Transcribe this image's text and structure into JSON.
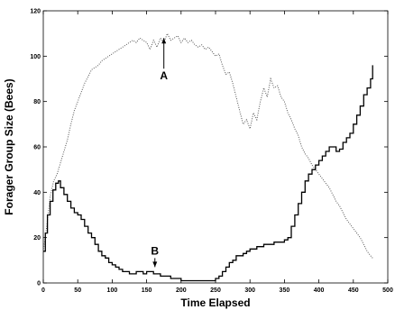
{
  "chart_data": {
    "type": "line",
    "xlabel": "Time Elapsed",
    "ylabel": "Forager Group Size (Bees)",
    "xlim": [
      0,
      500
    ],
    "ylim": [
      0,
      120
    ],
    "xticks": [
      "0",
      "50",
      "100",
      "150",
      "200",
      "250",
      "300",
      "350",
      "400",
      "450",
      "500"
    ],
    "yticks": [
      "0",
      "20",
      "40",
      "60",
      "80",
      "100",
      "120"
    ],
    "grid": false,
    "annotations": [
      {
        "label": "A",
        "x": 175,
        "y": 108
      },
      {
        "label": "B",
        "x": 162,
        "y": 7
      }
    ],
    "series": [
      {
        "style": "dotted",
        "color": "#555555",
        "points": [
          [
            0,
            14
          ],
          [
            5,
            25
          ],
          [
            10,
            38
          ],
          [
            15,
            45
          ],
          [
            20,
            48
          ],
          [
            25,
            53
          ],
          [
            30,
            58
          ],
          [
            35,
            63
          ],
          [
            40,
            70
          ],
          [
            45,
            76
          ],
          [
            50,
            80
          ],
          [
            55,
            84
          ],
          [
            60,
            88
          ],
          [
            65,
            91
          ],
          [
            70,
            94
          ],
          [
            75,
            95
          ],
          [
            80,
            96
          ],
          [
            85,
            98
          ],
          [
            90,
            99
          ],
          [
            95,
            100
          ],
          [
            100,
            101
          ],
          [
            105,
            102
          ],
          [
            110,
            103
          ],
          [
            115,
            104
          ],
          [
            120,
            105
          ],
          [
            125,
            106
          ],
          [
            130,
            107
          ],
          [
            135,
            106
          ],
          [
            140,
            108
          ],
          [
            145,
            107
          ],
          [
            150,
            106
          ],
          [
            155,
            103
          ],
          [
            160,
            107
          ],
          [
            165,
            104
          ],
          [
            170,
            108
          ],
          [
            175,
            106
          ],
          [
            180,
            110
          ],
          [
            185,
            107
          ],
          [
            190,
            108
          ],
          [
            195,
            109
          ],
          [
            200,
            106
          ],
          [
            205,
            108
          ],
          [
            210,
            106
          ],
          [
            215,
            107
          ],
          [
            220,
            105
          ],
          [
            225,
            104
          ],
          [
            230,
            105
          ],
          [
            235,
            103
          ],
          [
            240,
            104
          ],
          [
            245,
            102
          ],
          [
            250,
            100
          ],
          [
            255,
            101
          ],
          [
            260,
            96
          ],
          [
            265,
            92
          ],
          [
            270,
            93
          ],
          [
            275,
            88
          ],
          [
            280,
            82
          ],
          [
            285,
            76
          ],
          [
            290,
            70
          ],
          [
            295,
            72
          ],
          [
            300,
            68
          ],
          [
            305,
            75
          ],
          [
            310,
            72
          ],
          [
            315,
            80
          ],
          [
            320,
            86
          ],
          [
            325,
            82
          ],
          [
            330,
            90
          ],
          [
            335,
            86
          ],
          [
            340,
            87
          ],
          [
            345,
            82
          ],
          [
            350,
            80
          ],
          [
            355,
            75
          ],
          [
            360,
            72
          ],
          [
            365,
            68
          ],
          [
            370,
            65
          ],
          [
            375,
            60
          ],
          [
            380,
            57
          ],
          [
            385,
            55
          ],
          [
            390,
            52
          ],
          [
            395,
            50
          ],
          [
            400,
            48
          ],
          [
            405,
            46
          ],
          [
            410,
            44
          ],
          [
            415,
            42
          ],
          [
            420,
            39
          ],
          [
            425,
            36
          ],
          [
            430,
            34
          ],
          [
            435,
            31
          ],
          [
            440,
            28
          ],
          [
            445,
            26
          ],
          [
            450,
            24
          ],
          [
            455,
            22
          ],
          [
            460,
            20
          ],
          [
            465,
            17
          ],
          [
            470,
            14
          ],
          [
            475,
            12
          ],
          [
            478,
            11
          ]
        ]
      },
      {
        "style": "solid",
        "color": "#000000",
        "points": [
          [
            0,
            14
          ],
          [
            3,
            22
          ],
          [
            6,
            30
          ],
          [
            10,
            36
          ],
          [
            14,
            41
          ],
          [
            18,
            44
          ],
          [
            22,
            45
          ],
          [
            25,
            42
          ],
          [
            30,
            39
          ],
          [
            35,
            36
          ],
          [
            40,
            33
          ],
          [
            45,
            31
          ],
          [
            50,
            30
          ],
          [
            55,
            28
          ],
          [
            60,
            25
          ],
          [
            65,
            22
          ],
          [
            70,
            20
          ],
          [
            75,
            17
          ],
          [
            80,
            14
          ],
          [
            85,
            12
          ],
          [
            90,
            11
          ],
          [
            95,
            9
          ],
          [
            100,
            8
          ],
          [
            105,
            7
          ],
          [
            110,
            6
          ],
          [
            115,
            5
          ],
          [
            120,
            5
          ],
          [
            125,
            4
          ],
          [
            130,
            4
          ],
          [
            135,
            5
          ],
          [
            140,
            5
          ],
          [
            145,
            4
          ],
          [
            150,
            5
          ],
          [
            155,
            5
          ],
          [
            160,
            4
          ],
          [
            165,
            4
          ],
          [
            170,
            3
          ],
          [
            175,
            3
          ],
          [
            180,
            3
          ],
          [
            185,
            2
          ],
          [
            190,
            2
          ],
          [
            195,
            2
          ],
          [
            200,
            1
          ],
          [
            210,
            1
          ],
          [
            220,
            1
          ],
          [
            230,
            1
          ],
          [
            240,
            1
          ],
          [
            245,
            1
          ],
          [
            250,
            2
          ],
          [
            255,
            3
          ],
          [
            260,
            5
          ],
          [
            265,
            7
          ],
          [
            270,
            9
          ],
          [
            275,
            10
          ],
          [
            280,
            12
          ],
          [
            285,
            12
          ],
          [
            290,
            13
          ],
          [
            295,
            14
          ],
          [
            300,
            15
          ],
          [
            305,
            15
          ],
          [
            310,
            16
          ],
          [
            315,
            16
          ],
          [
            320,
            17
          ],
          [
            325,
            17
          ],
          [
            330,
            17
          ],
          [
            335,
            18
          ],
          [
            340,
            18
          ],
          [
            345,
            18
          ],
          [
            350,
            19
          ],
          [
            355,
            20
          ],
          [
            360,
            25
          ],
          [
            365,
            30
          ],
          [
            370,
            35
          ],
          [
            375,
            40
          ],
          [
            380,
            45
          ],
          [
            385,
            48
          ],
          [
            390,
            50
          ],
          [
            395,
            52
          ],
          [
            400,
            54
          ],
          [
            405,
            56
          ],
          [
            410,
            58
          ],
          [
            415,
            60
          ],
          [
            420,
            60
          ],
          [
            425,
            58
          ],
          [
            430,
            59
          ],
          [
            435,
            62
          ],
          [
            440,
            64
          ],
          [
            445,
            66
          ],
          [
            450,
            70
          ],
          [
            455,
            74
          ],
          [
            460,
            78
          ],
          [
            465,
            83
          ],
          [
            470,
            86
          ],
          [
            475,
            90
          ],
          [
            478,
            96
          ]
        ]
      }
    ]
  }
}
